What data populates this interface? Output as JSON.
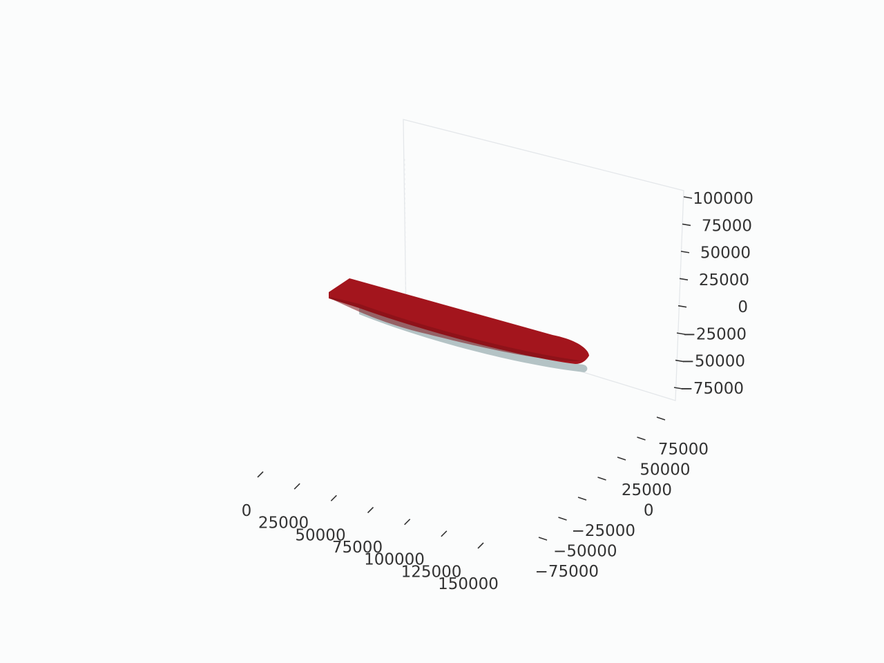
{
  "chart_data": {
    "type": "surface-3d",
    "title": "",
    "xlabel": "",
    "ylabel": "",
    "zlabel": "",
    "grid": true,
    "x_axis": {
      "ticks": [
        0,
        25000,
        50000,
        75000,
        100000,
        125000,
        150000
      ],
      "tick_labels": [
        "0",
        "25000",
        "50000",
        "75000",
        "100000",
        "125000",
        "150000"
      ]
    },
    "y_axis": {
      "ticks": [
        -75000,
        -50000,
        -25000,
        0,
        25000,
        50000,
        75000
      ],
      "tick_labels": [
        "−75000",
        "−50000",
        "−25000",
        "0",
        "25000",
        "50000",
        "75000"
      ]
    },
    "z_axis": {
      "ticks": [
        -75000,
        -50000,
        -25000,
        0,
        25000,
        50000,
        75000,
        100000
      ],
      "tick_labels": [
        "−75000",
        "−50000",
        "−25000",
        "0",
        "25000",
        "50000",
        "75000",
        "100000"
      ]
    },
    "surfaces": [
      {
        "role": "hull-side",
        "color": "#a3151d"
      },
      {
        "role": "hull-bottom",
        "color": "#b4c3c5"
      }
    ]
  }
}
